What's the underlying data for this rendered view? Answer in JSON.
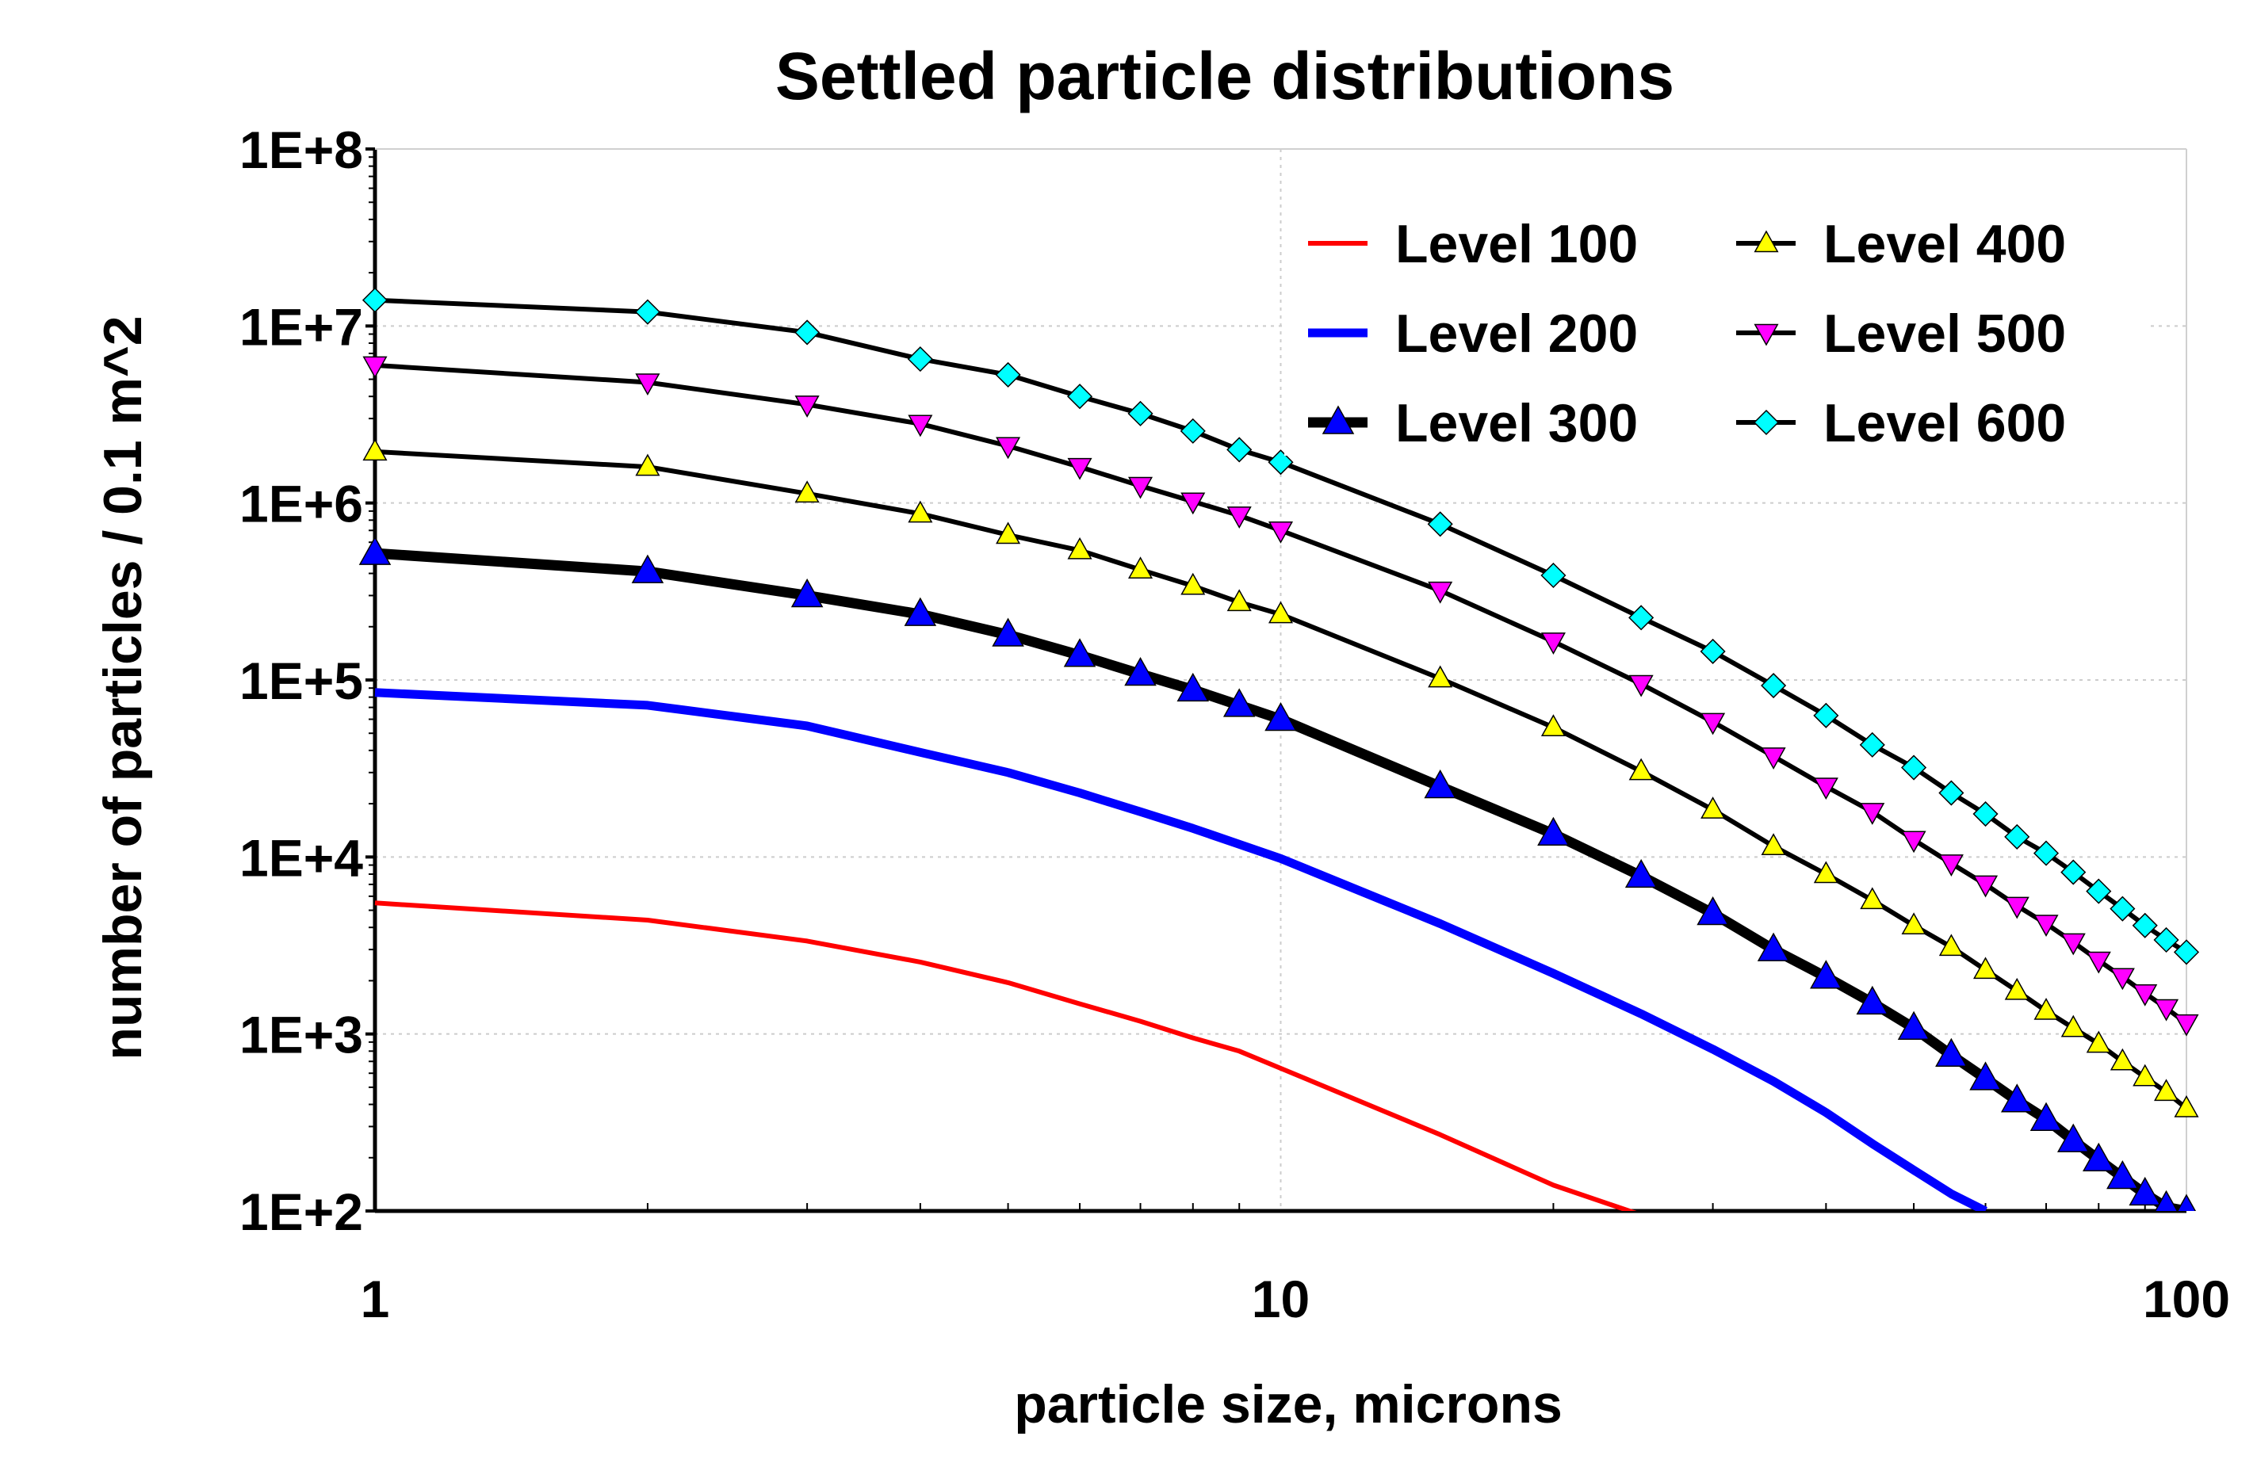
{
  "chart_data": {
    "type": "line",
    "title": "Settled particle distributions",
    "xlabel": "particle size, microns",
    "ylabel": "number of particles / 0.1 m^2",
    "x_scale": "log",
    "y_scale": "log",
    "xlim": [
      1,
      100
    ],
    "ylim": [
      100,
      100000000
    ],
    "x_ticks": [
      "1",
      "10",
      "100"
    ],
    "y_ticks": [
      "1E+2",
      "1E+3",
      "1E+4",
      "1E+5",
      "1E+6",
      "1E+7",
      "1E+8"
    ],
    "grid": true,
    "legend_position": "top-right",
    "x": [
      1,
      2,
      3,
      4,
      5,
      6,
      7,
      8,
      9,
      10,
      15,
      20,
      25,
      30,
      35,
      40,
      45,
      50,
      55,
      60,
      65,
      70,
      75,
      80,
      85,
      90,
      95,
      100
    ],
    "series": [
      {
        "name": "Level 100",
        "color": "#ff0000",
        "marker": "none",
        "values": [
          5500,
          4400,
          3350,
          2550,
          1950,
          1480,
          1180,
          950,
          800,
          640,
          270,
          140,
          95,
          null,
          null,
          null,
          null,
          null,
          null,
          null,
          null,
          null,
          null,
          null,
          null,
          null,
          null,
          null
        ]
      },
      {
        "name": "Level 200",
        "color": "#0000ff",
        "marker": "none",
        "values": [
          85000,
          72000,
          55000,
          39000,
          30000,
          23000,
          18000,
          14500,
          11800,
          9800,
          4200,
          2200,
          1300,
          820,
          540,
          360,
          240,
          170,
          125,
          100,
          null,
          null,
          null,
          null,
          null,
          null,
          null,
          null
        ]
      },
      {
        "name": "Level 300",
        "color": "#0000ff",
        "marker": "triangle-up",
        "values": [
          520000,
          410000,
          300000,
          235000,
          180000,
          138000,
          108000,
          88000,
          72000,
          60000,
          25000,
          13500,
          7800,
          4800,
          3000,
          2100,
          1500,
          1080,
          760,
          560,
          420,
          330,
          250,
          195,
          155,
          125,
          105,
          100
        ]
      },
      {
        "name": "Level 400",
        "color": "#ffff00",
        "marker": "triangle-up",
        "values": [
          1950000,
          1600000,
          1130000,
          870000,
          660000,
          540000,
          420000,
          340000,
          275000,
          235000,
          102000,
          54000,
          30500,
          18500,
          11500,
          8000,
          5700,
          4100,
          3100,
          2300,
          1750,
          1350,
          1080,
          880,
          700,
          570,
          470,
          380
        ]
      },
      {
        "name": "Level 500",
        "color": "#ff00ff",
        "marker": "triangle-down",
        "values": [
          6000000,
          4800000,
          3600000,
          2800000,
          2100000,
          1600000,
          1250000,
          1020000,
          850000,
          700000,
          320000,
          165000,
          95000,
          58000,
          37000,
          25000,
          18000,
          12500,
          9200,
          7000,
          5300,
          4200,
          3300,
          2600,
          2100,
          1700,
          1400,
          1150
        ]
      },
      {
        "name": "Level 600",
        "color": "#00ffff",
        "marker": "diamond",
        "values": [
          14000000,
          12000000,
          9200000,
          6500000,
          5300000,
          4000000,
          3200000,
          2550000,
          2000000,
          1700000,
          760000,
          390000,
          225000,
          145000,
          93000,
          63000,
          43000,
          32000,
          23000,
          17500,
          13000,
          10500,
          8200,
          6400,
          5100,
          4100,
          3400,
          2900
        ]
      }
    ]
  }
}
